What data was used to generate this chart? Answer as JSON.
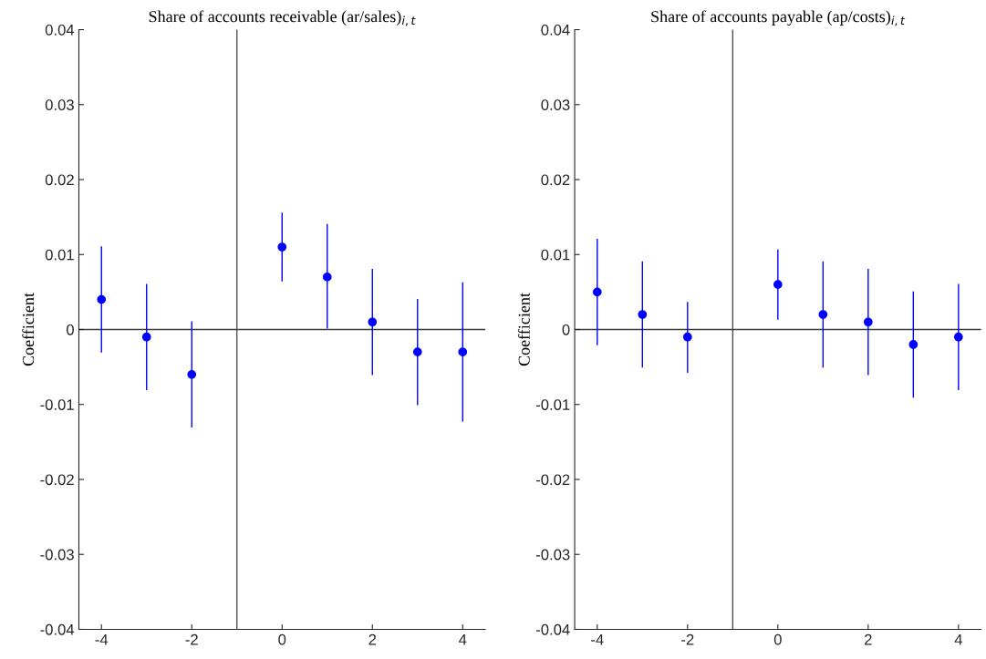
{
  "chart_data": [
    {
      "type": "scatter",
      "title": "Share of accounts receivable (ar/sales)$_{i,t}$",
      "ylabel": "Coefficient",
      "x": [
        -4,
        -3,
        -2,
        0,
        1,
        2,
        3,
        4
      ],
      "series": [
        {
          "color": "#0000ff",
          "values": [
            0.004,
            -0.001,
            -0.006,
            0.011,
            0.007,
            0.001,
            -0.003,
            -0.003
          ],
          "errors": [
            [
              -0.003,
              0.011
            ],
            [
              -0.008,
              0.006
            ],
            [
              -0.013,
              0.001
            ],
            [
              0.0065,
              0.0155
            ],
            [
              0.0002,
              0.014
            ],
            [
              -0.006,
              0.008
            ],
            [
              -0.01,
              0.004
            ],
            [
              -0.0122,
              0.0062
            ]
          ]
        }
      ],
      "xlim": [
        -4.5,
        4.5
      ],
      "xticks": [
        -4,
        -2,
        0,
        2,
        4
      ],
      "ylim": [
        -0.04,
        0.04
      ],
      "yticks": [
        -0.04,
        -0.03,
        -0.02,
        -0.01,
        0,
        0.01,
        0.02,
        0.03,
        0.04
      ],
      "ref_lines": [
        {
          "axis": "x",
          "value": -1,
          "color": "#404040"
        },
        {
          "axis": "y",
          "value": 0,
          "color": "#404040"
        }
      ],
      "marker": "circle",
      "grid": false
    },
    {
      "type": "scatter",
      "title": "Share of accounts payable (ap/costs)$_{i,t}$",
      "ylabel": "Coefficient",
      "x": [
        -4,
        -3,
        -2,
        0,
        1,
        2,
        3,
        4
      ],
      "series": [
        {
          "color": "#0000ff",
          "values": [
            0.005,
            0.002,
            -0.001,
            0.006,
            0.002,
            0.001,
            -0.002,
            -0.001
          ],
          "errors": [
            [
              -0.002,
              0.012
            ],
            [
              -0.005,
              0.009
            ],
            [
              -0.0057,
              0.0036
            ],
            [
              0.0014,
              0.0106
            ],
            [
              -0.005,
              0.009
            ],
            [
              -0.006,
              0.008
            ],
            [
              -0.009,
              0.005
            ],
            [
              -0.008,
              0.006
            ]
          ]
        }
      ],
      "xlim": [
        -4.5,
        4.5
      ],
      "xticks": [
        -4,
        -2,
        0,
        2,
        4
      ],
      "ylim": [
        -0.04,
        0.04
      ],
      "yticks": [
        -0.04,
        -0.03,
        -0.02,
        -0.01,
        0,
        0.01,
        0.02,
        0.03,
        0.04
      ],
      "ref_lines": [
        {
          "axis": "x",
          "value": -1,
          "color": "#404040"
        },
        {
          "axis": "y",
          "value": 0,
          "color": "#404040"
        }
      ],
      "marker": "circle",
      "grid": false
    }
  ]
}
